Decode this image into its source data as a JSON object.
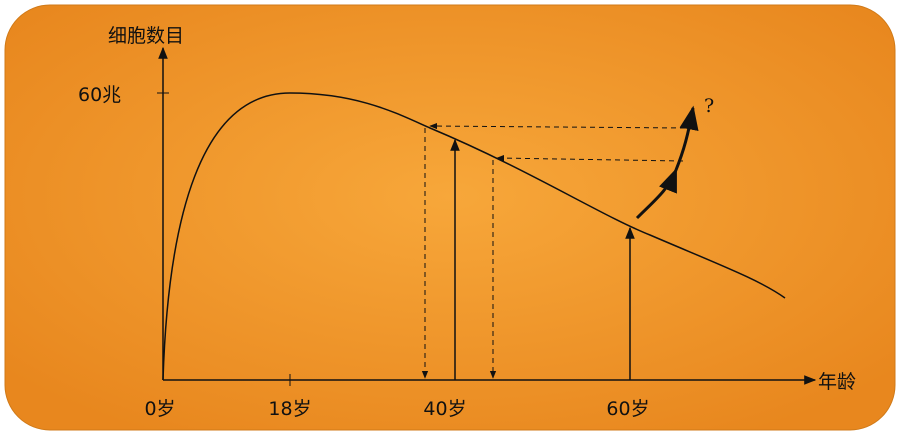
{
  "axes": {
    "y_label": "细胞数目",
    "y_tick": "60兆",
    "x_label": "年龄",
    "x_ticks": [
      "0岁",
      "18岁",
      "40岁",
      "60岁"
    ]
  },
  "annotation": "?"
}
